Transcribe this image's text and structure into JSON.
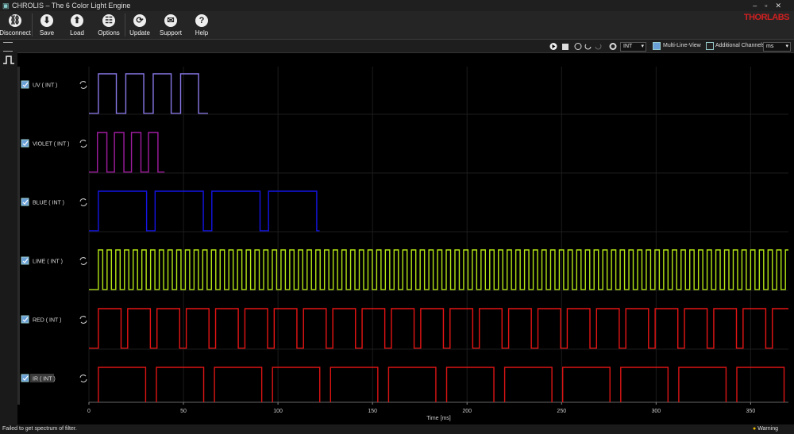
{
  "title_bar": {
    "title": "CHROLIS – The 6 Color Light Engine"
  },
  "toolbar": {
    "buttons": [
      "Disconnect",
      "Save",
      "Load",
      "Options",
      "Update",
      "Support",
      "Help"
    ],
    "logo": "THORLABS"
  },
  "view_bar": {
    "trigger_mode": "INT",
    "multi_line_view": "Multi-Line-View",
    "additional_channels": "Additional Channels",
    "unit": "ms"
  },
  "chart_data": {
    "type": "pulse",
    "x_label": "Time [ms]",
    "xlim": [
      0,
      370
    ],
    "xticks": [
      0,
      50,
      100,
      150,
      200,
      250,
      300,
      350
    ],
    "grid": true,
    "series": [
      {
        "name": "UV ( INT )",
        "color": "#8878e8",
        "start": 5,
        "period": 14.5,
        "high": 9.5,
        "end": 63
      },
      {
        "name": "VIOLET ( INT )",
        "color": "#a01ca0",
        "start": 4.5,
        "period": 9,
        "high": 5,
        "end": 40
      },
      {
        "name": "BLUE ( INT )",
        "color": "#1414e6",
        "start": 5,
        "period": 30,
        "high": 25.5,
        "end": 122
      },
      {
        "name": "LIME ( INT )",
        "color": "#b4e614",
        "start": 5,
        "period": 4.6,
        "high": 2.3,
        "end": 370
      },
      {
        "name": "RED ( INT )",
        "color": "#e61414",
        "start": 5,
        "period": 15.5,
        "high": 12,
        "end": 370
      },
      {
        "name": "IR ( INT )",
        "color": "#dc1414",
        "start": 5,
        "period": 30.7,
        "high": 25,
        "end": 370
      }
    ]
  },
  "status_bar": {
    "message": "Failed to get spectrum of filter.",
    "state": "Warning"
  }
}
